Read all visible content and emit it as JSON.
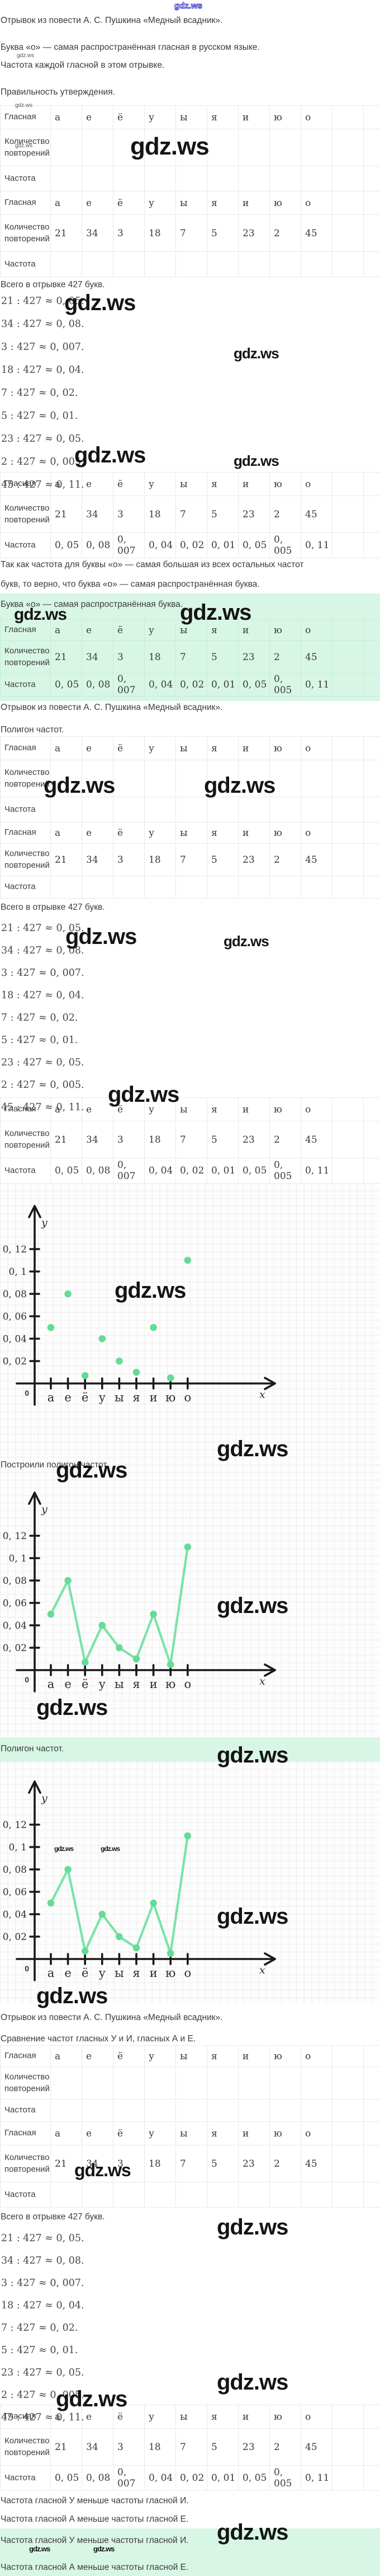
{
  "watermark": {
    "text": "gdz.ws"
  },
  "texts": {
    "excerpt": "Отрывок из повести А. С. Пушкина «Медный всадник».",
    "statement_o": "Буква «о» — самая распространённая гласная в русском языке.",
    "freq_each": "Частота каждой гласной в этом отрывке.",
    "correctness": "Правильность утверждения.",
    "total": "Всего в отрывке 427 букв.",
    "since1": "Так как частота для буквы «о» — самая большая из всех остальных частот",
    "since2": "букв, то верно, что буква «о» — самая распространённая буква.",
    "answer_o": "Буква «о» — самая распространённая буква.",
    "polygon_title": "Полигон частот.",
    "built_polygon": "Построили полигон частот.",
    "compare": "Сравнение частот гласных У и И, гласных А и Е.",
    "u_less_i": "Частота гласной У меньше частоты гласной И.",
    "a_less_e": "Частота гласной А меньше частоты гласной Е."
  },
  "table": {
    "row_labels": [
      "Гласная",
      "Количество повторений",
      "Частота"
    ],
    "vowels": [
      "а",
      "е",
      "ё",
      "у",
      "ы",
      "я",
      "и",
      "ю",
      "о"
    ],
    "counts": [
      "21",
      "34",
      "3",
      "18",
      "7",
      "5",
      "23",
      "2",
      "45"
    ],
    "freqs": [
      "0, 05",
      "0, 08",
      "0, 007",
      "0, 04",
      "0, 02",
      "0, 01",
      "0, 05",
      "0, 005",
      "0, 11"
    ]
  },
  "formulas": [
    "21 : 427 ≈ 0, 05.",
    "34 : 427 ≈ 0, 08.",
    "3 : 427 ≈ 0, 007.",
    "18 : 427 ≈ 0, 04.",
    "7 : 427 ≈ 0, 02.",
    "5 : 427 ≈ 0, 01.",
    "23 : 427 ≈ 0, 05.",
    "2 : 427 ≈ 0, 005.",
    "45 : 427 ≈ 0, 11."
  ],
  "chart_data": [
    {
      "type": "scatter",
      "categories": [
        "а",
        "е",
        "ё",
        "у",
        "ы",
        "я",
        "и",
        "ю",
        "о"
      ],
      "values": [
        0.05,
        0.08,
        0.007,
        0.04,
        0.02,
        0.01,
        0.05,
        0.005,
        0.11
      ],
      "yticks": [
        "0, 02",
        "0, 04",
        "0, 06",
        "0, 08",
        "0, 1",
        "0, 12"
      ],
      "xlabel": "x",
      "ylabel": "y",
      "origin_label": "0",
      "ylim": [
        0,
        0.14
      ],
      "grid": true,
      "point_color": "#66DB95"
    },
    {
      "type": "line",
      "categories": [
        "а",
        "е",
        "ё",
        "у",
        "ы",
        "я",
        "и",
        "ю",
        "о"
      ],
      "values": [
        0.05,
        0.08,
        0.007,
        0.04,
        0.02,
        0.01,
        0.05,
        0.005,
        0.11
      ],
      "yticks": [
        "0, 02",
        "0, 04",
        "0, 06",
        "0, 08",
        "0, 1",
        "0, 12"
      ],
      "xlabel": "x",
      "ylabel": "y",
      "origin_label": "0",
      "ylim": [
        0,
        0.14
      ],
      "grid": true,
      "point_color": "#66DB95",
      "line_color": "#7AE3A8"
    },
    {
      "type": "line",
      "categories": [
        "а",
        "е",
        "ё",
        "у",
        "ы",
        "я",
        "и",
        "ю",
        "о"
      ],
      "values": [
        0.05,
        0.08,
        0.007,
        0.04,
        0.02,
        0.01,
        0.05,
        0.005,
        0.11
      ],
      "yticks": [
        "0, 02",
        "0, 04",
        "0, 06",
        "0, 08",
        "0, 1",
        "0, 12"
      ],
      "xlabel": "x",
      "ylabel": "y",
      "origin_label": "0",
      "ylim": [
        0,
        0.14
      ],
      "grid": true,
      "point_color": "#66DB95",
      "line_color": "#7AE3A8"
    }
  ]
}
